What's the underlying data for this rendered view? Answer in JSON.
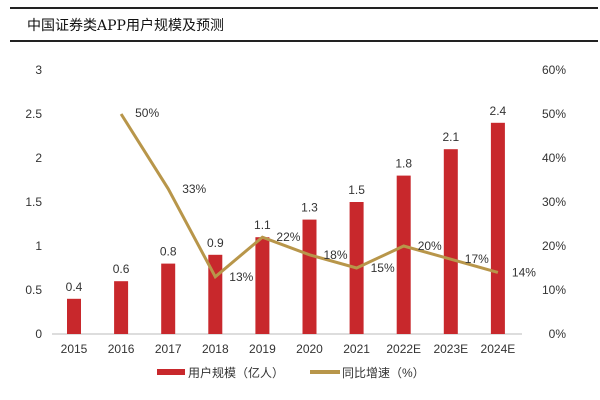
{
  "title": "中国证券类APP用户规模及预测",
  "chart_data": {
    "type": "bar+line",
    "categories": [
      "2015",
      "2016",
      "2017",
      "2018",
      "2019",
      "2020",
      "2021",
      "2022E",
      "2023E",
      "2024E"
    ],
    "series": [
      {
        "name": "用户规模（亿人）",
        "type": "bar",
        "axis": "left",
        "color": "#C8282C",
        "values": [
          0.4,
          0.6,
          0.8,
          0.9,
          1.1,
          1.3,
          1.5,
          1.8,
          2.1,
          2.4
        ],
        "labels": [
          "0.4",
          "0.6",
          "0.8",
          "0.9",
          "1.1",
          "1.3",
          "1.5",
          "1.8",
          "2.1",
          "2.4"
        ]
      },
      {
        "name": "同比增速（%）",
        "type": "line",
        "axis": "right",
        "color": "#B8964A",
        "values": [
          null,
          50,
          33,
          13,
          22,
          18,
          15,
          20,
          17,
          14
        ],
        "labels": [
          "",
          "50%",
          "33%",
          "13%",
          "22%",
          "18%",
          "15%",
          "20%",
          "17%",
          "14%"
        ]
      }
    ],
    "y_left": {
      "range": [
        0,
        3
      ],
      "ticks": [
        "0",
        "0.5",
        "1",
        "1.5",
        "2",
        "2.5",
        "3"
      ]
    },
    "y_right": {
      "range": [
        0,
        60
      ],
      "ticks": [
        "0%",
        "10%",
        "20%",
        "30%",
        "40%",
        "50%",
        "60%"
      ]
    },
    "grid": false,
    "legend": "bottom"
  }
}
